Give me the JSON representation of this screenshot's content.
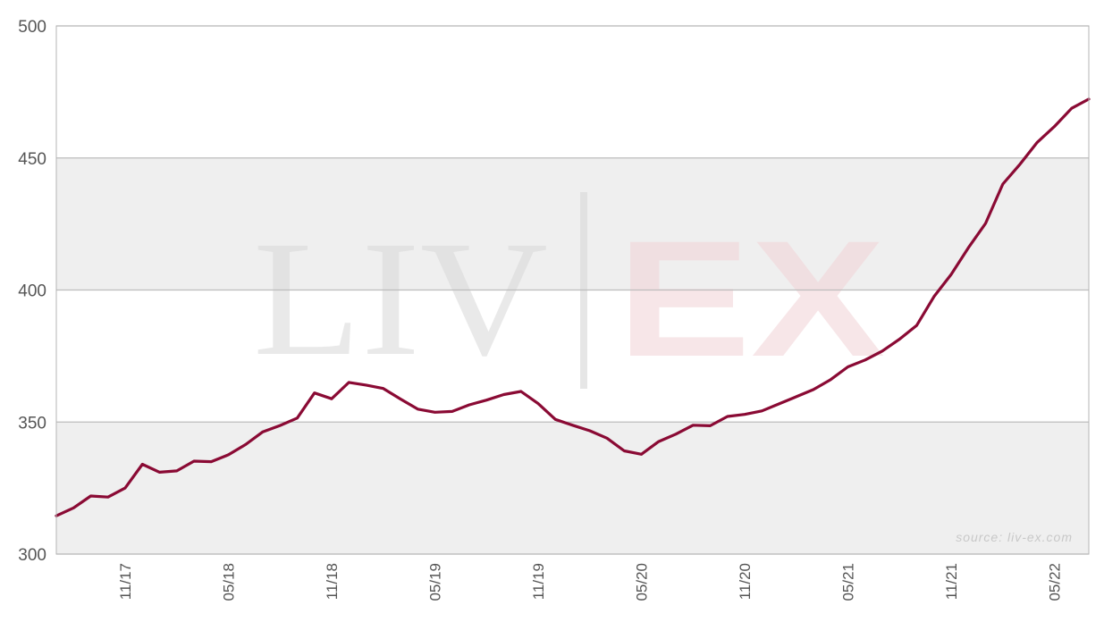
{
  "chart_data": {
    "type": "line",
    "title": "",
    "xlabel": "",
    "ylabel": "",
    "ylim": [
      300,
      500
    ],
    "yticks": [
      300,
      350,
      400,
      450,
      500
    ],
    "xtick_labels": [
      "11/17",
      "05/18",
      "11/18",
      "05/19",
      "11/19",
      "05/20",
      "11/20",
      "05/21",
      "11/21",
      "05/22"
    ],
    "grid": true,
    "band_fill_color": "#efefef",
    "line_color": "#8a0a34",
    "watermark_left": "LIV",
    "watermark_right": "EX",
    "source_note": "source: liv-ex.com",
    "series": [
      {
        "x": [
          "2017-07",
          "2017-08",
          "2017-09",
          "2017-10",
          "2017-11",
          "2017-12",
          "2018-01",
          "2018-02",
          "2018-03",
          "2018-04",
          "2018-05",
          "2018-06",
          "2018-07",
          "2018-08",
          "2018-09",
          "2018-10",
          "2018-11",
          "2018-12",
          "2019-01",
          "2019-02",
          "2019-03",
          "2019-04",
          "2019-05",
          "2019-06",
          "2019-07",
          "2019-08",
          "2019-09",
          "2019-10",
          "2019-11",
          "2019-12",
          "2020-01",
          "2020-02",
          "2020-03",
          "2020-04",
          "2020-05",
          "2020-06",
          "2020-07",
          "2020-08",
          "2020-09",
          "2020-10",
          "2020-11",
          "2020-12",
          "2021-01",
          "2021-02",
          "2021-03",
          "2021-04",
          "2021-05",
          "2021-06",
          "2021-07",
          "2021-08",
          "2021-09",
          "2021-10",
          "2021-11",
          "2021-12",
          "2022-01",
          "2022-02",
          "2022-03",
          "2022-04",
          "2022-05",
          "2022-06",
          "2022-07"
        ],
        "values": [
          314.5,
          317.5,
          322,
          321.6,
          325,
          334,
          331,
          331.5,
          335.2,
          335,
          337.6,
          341.5,
          346.3,
          348.7,
          351.5,
          361,
          358.8,
          365,
          364,
          362.7,
          358.7,
          354.9,
          353.7,
          354,
          356.5,
          358.3,
          360.4,
          361.6,
          357,
          351,
          348.8,
          346.7,
          343.9,
          339.1,
          337.8,
          342.6,
          345.4,
          348.8,
          348.6,
          352.1,
          352.9,
          354.2,
          356.9,
          359.6,
          362.3,
          366.1,
          370.9,
          373.5,
          376.9,
          381.4,
          386.6,
          397.5,
          405.9,
          416,
          425.2,
          440.1,
          447.6,
          455.9,
          461.9,
          468.8,
          472.3
        ]
      }
    ]
  }
}
